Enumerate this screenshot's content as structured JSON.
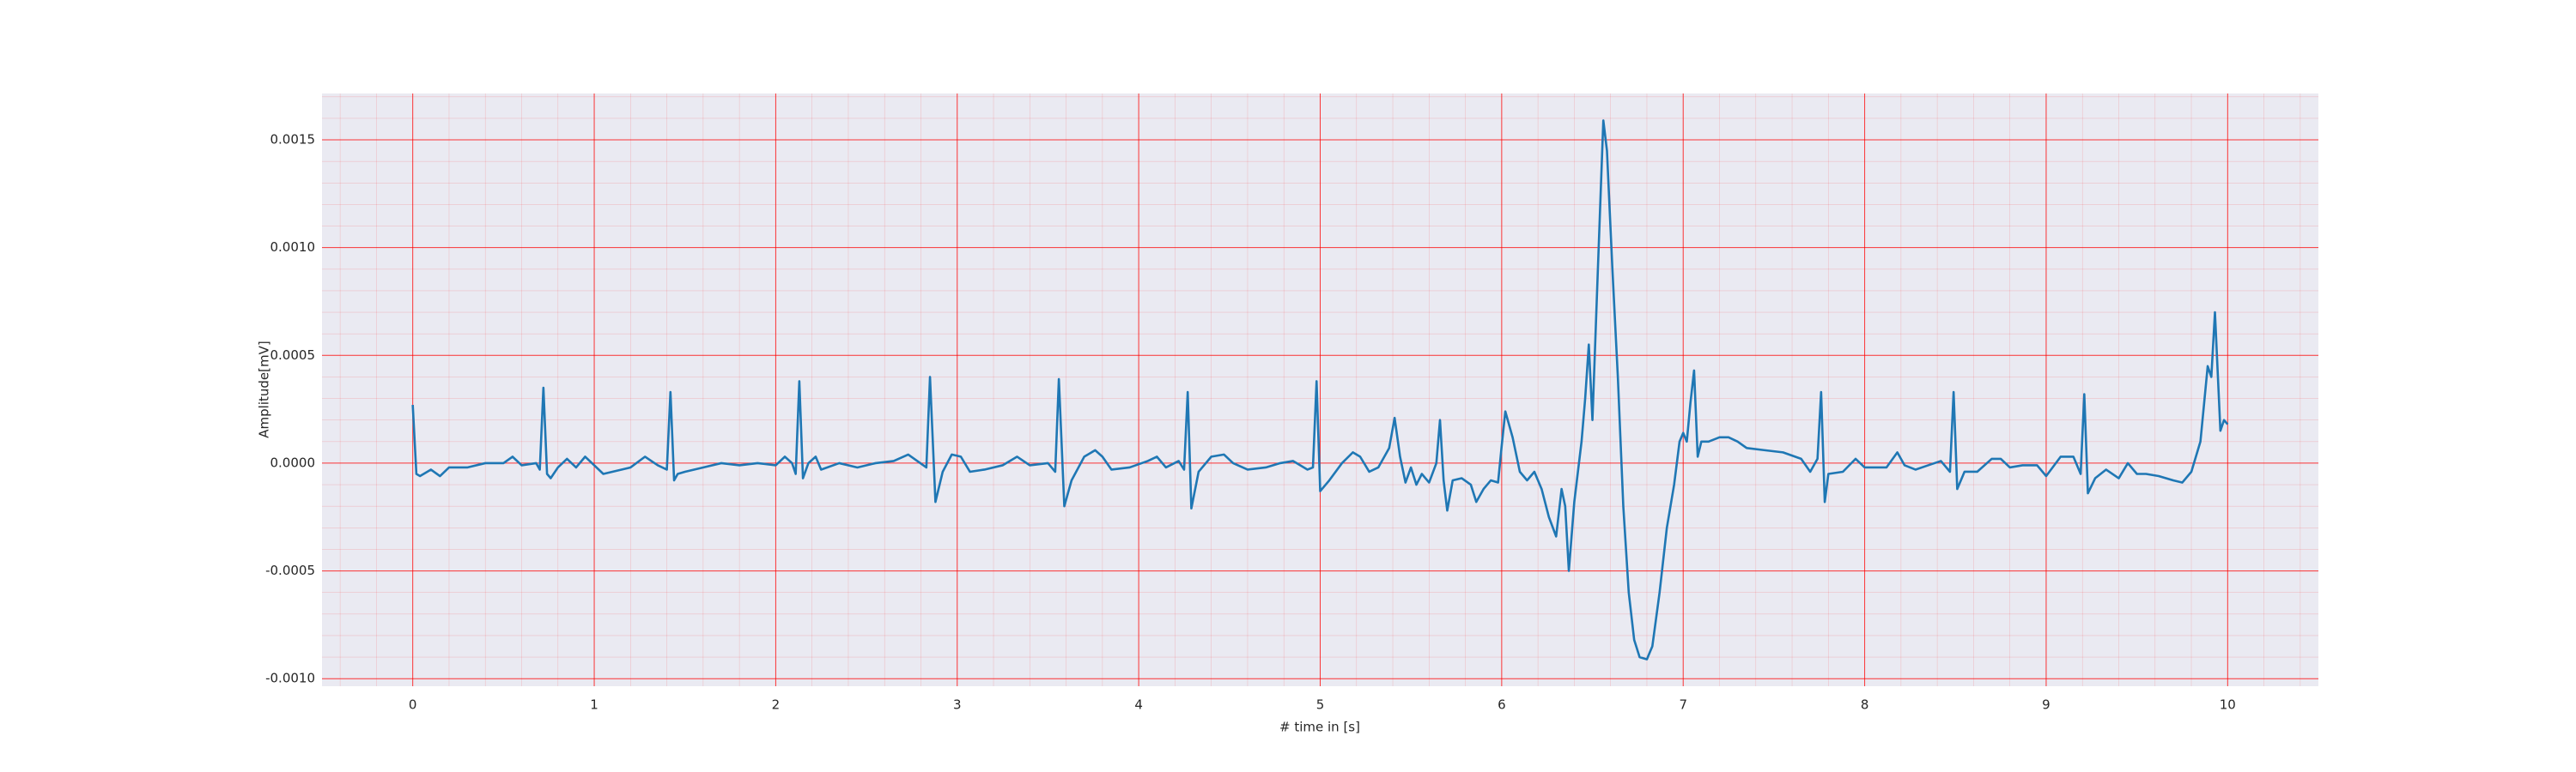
{
  "chart_data": {
    "type": "line",
    "xlabel": "# time in [s]",
    "ylabel": "Amplitude[mV]",
    "color": "#1f77b4",
    "grid": true,
    "minor_grid": true,
    "background": "#eaeaf2",
    "xlim": [
      -0.5,
      10.5
    ],
    "ylim": [
      -0.001035,
      0.001715
    ],
    "xticks": [
      0,
      1,
      2,
      3,
      4,
      5,
      6,
      7,
      8,
      9,
      10
    ],
    "yticks": [
      {
        "value": -0.001,
        "label": "-0.0010"
      },
      {
        "value": -0.0005,
        "label": "-0.0005"
      },
      {
        "value": 0,
        "label": "0.0000"
      },
      {
        "value": 0.0005,
        "label": "0.0005"
      },
      {
        "value": 0.001,
        "label": "0.0010"
      },
      {
        "value": 0.0015,
        "label": "0.0015"
      }
    ],
    "x": [
      0,
      0.02,
      0.04,
      0.1,
      0.15,
      0.2,
      0.3,
      0.4,
      0.5,
      0.55,
      0.6,
      0.68,
      0.7,
      0.72,
      0.74,
      0.76,
      0.8,
      0.85,
      0.9,
      0.95,
      1.0,
      1.05,
      1.1,
      1.2,
      1.28,
      1.35,
      1.4,
      1.42,
      1.44,
      1.46,
      1.5,
      1.6,
      1.7,
      1.8,
      1.9,
      2.0,
      2.05,
      2.09,
      2.11,
      2.13,
      2.15,
      2.18,
      2.22,
      2.25,
      2.35,
      2.45,
      2.55,
      2.65,
      2.73,
      2.78,
      2.83,
      2.85,
      2.88,
      2.92,
      2.97,
      3.02,
      3.07,
      3.15,
      3.25,
      3.33,
      3.4,
      3.5,
      3.54,
      3.56,
      3.59,
      3.63,
      3.7,
      3.76,
      3.8,
      3.85,
      3.95,
      4.05,
      4.1,
      4.15,
      4.22,
      4.25,
      4.27,
      4.29,
      4.33,
      4.4,
      4.47,
      4.52,
      4.6,
      4.7,
      4.78,
      4.85,
      4.93,
      4.96,
      4.98,
      5.0,
      5.05,
      5.12,
      5.18,
      5.22,
      5.27,
      5.32,
      5.38,
      5.41,
      5.44,
      5.47,
      5.5,
      5.53,
      5.56,
      5.6,
      5.64,
      5.66,
      5.68,
      5.7,
      5.73,
      5.78,
      5.83,
      5.86,
      5.9,
      5.94,
      5.98,
      6.0,
      6.02,
      6.06,
      6.1,
      6.14,
      6.18,
      6.22,
      6.26,
      6.3,
      6.33,
      6.35,
      6.37,
      6.4,
      6.44,
      6.46,
      6.48,
      6.5,
      6.53,
      6.56,
      6.58,
      6.61,
      6.64,
      6.67,
      6.7,
      6.73,
      6.76,
      6.8,
      6.83,
      6.87,
      6.91,
      6.95,
      6.98,
      7.0,
      7.02,
      7.04,
      7.06,
      7.08,
      7.1,
      7.14,
      7.2,
      7.25,
      7.3,
      7.35,
      7.45,
      7.55,
      7.65,
      7.7,
      7.74,
      7.76,
      7.78,
      7.8,
      7.88,
      7.95,
      8.0,
      8.07,
      8.12,
      8.18,
      8.22,
      8.28,
      8.35,
      8.42,
      8.47,
      8.49,
      8.51,
      8.55,
      8.62,
      8.7,
      8.75,
      8.8,
      8.87,
      8.95,
      9.0,
      9.08,
      9.15,
      9.19,
      9.21,
      9.23,
      9.27,
      9.33,
      9.4,
      9.45,
      9.5,
      9.55,
      9.62,
      9.7,
      9.75,
      9.8,
      9.85,
      9.89,
      9.91,
      9.93,
      9.96,
      9.98,
      10.0
    ],
    "values": [
      0.00027,
      -5e-05,
      -6e-05,
      -3e-05,
      -6e-05,
      -2e-05,
      -2e-05,
      0,
      0,
      3e-05,
      -1e-05,
      0,
      -3e-05,
      0.00035,
      -5e-05,
      -7e-05,
      -2e-05,
      2e-05,
      -2e-05,
      3e-05,
      -1e-05,
      -5e-05,
      -4e-05,
      -2e-05,
      3e-05,
      -1e-05,
      -3e-05,
      0.00033,
      -8e-05,
      -5e-05,
      -4e-05,
      -2e-05,
      0,
      -1e-05,
      0,
      -1e-05,
      3e-05,
      0,
      -5e-05,
      0.00038,
      -7e-05,
      0,
      3e-05,
      -3e-05,
      0,
      -2e-05,
      0,
      1e-05,
      4e-05,
      1e-05,
      -2e-05,
      0.0004,
      -0.00018,
      -4e-05,
      4e-05,
      3e-05,
      -4e-05,
      -3e-05,
      -1e-05,
      3e-05,
      -1e-05,
      0,
      -4e-05,
      0.00039,
      -0.0002,
      -8e-05,
      3e-05,
      6e-05,
      3e-05,
      -3e-05,
      -2e-05,
      1e-05,
      3e-05,
      -2e-05,
      1e-05,
      -3e-05,
      0.00033,
      -0.00021,
      -4e-05,
      3e-05,
      4e-05,
      0,
      -3e-05,
      -2e-05,
      0,
      1e-05,
      -3e-05,
      -2e-05,
      0.00038,
      -0.00013,
      -8e-05,
      0,
      5e-05,
      3e-05,
      -4e-05,
      -2e-05,
      7e-05,
      0.00021,
      3e-05,
      -9e-05,
      -2e-05,
      -0.0001,
      -5e-05,
      -9e-05,
      0,
      0.0002,
      -8e-05,
      -0.00022,
      -8e-05,
      -7e-05,
      -0.0001,
      -0.00018,
      -0.00012,
      -8e-05,
      -9e-05,
      8e-05,
      0.00024,
      0.00012,
      -4e-05,
      -8e-05,
      -4e-05,
      -0.00012,
      -0.00025,
      -0.00034,
      -0.00012,
      -0.0002,
      -0.0005,
      -0.00018,
      0.0001,
      0.0003,
      0.00055,
      0.0002,
      0.0009,
      0.00159,
      0.00145,
      0.0009,
      0.0004,
      -0.0002,
      -0.0006,
      -0.00082,
      -0.0009,
      -0.00091,
      -0.00085,
      -0.0006,
      -0.0003,
      -0.0001,
      0.0001,
      0.00014,
      0.0001,
      0.00028,
      0.00043,
      3e-05,
      0.0001,
      0.0001,
      0.00012,
      0.00012,
      0.0001,
      7e-05,
      6e-05,
      5e-05,
      2e-05,
      -4e-05,
      2e-05,
      0.00033,
      -0.00018,
      -5e-05,
      -4e-05,
      2e-05,
      -2e-05,
      -2e-05,
      -2e-05,
      5e-05,
      -1e-05,
      -3e-05,
      -1e-05,
      1e-05,
      -4e-05,
      0.00033,
      -0.00012,
      -4e-05,
      -4e-05,
      2e-05,
      2e-05,
      -2e-05,
      -1e-05,
      -1e-05,
      -6e-05,
      3e-05,
      3e-05,
      -5e-05,
      0.00032,
      -0.00014,
      -7e-05,
      -3e-05,
      -7e-05,
      0,
      -5e-05,
      -5e-05,
      -6e-05,
      -8e-05,
      -9e-05,
      -4e-05,
      0.0001,
      0.00045,
      0.0004,
      0.0007,
      0.00015,
      0.0002,
      0.00018
    ]
  }
}
